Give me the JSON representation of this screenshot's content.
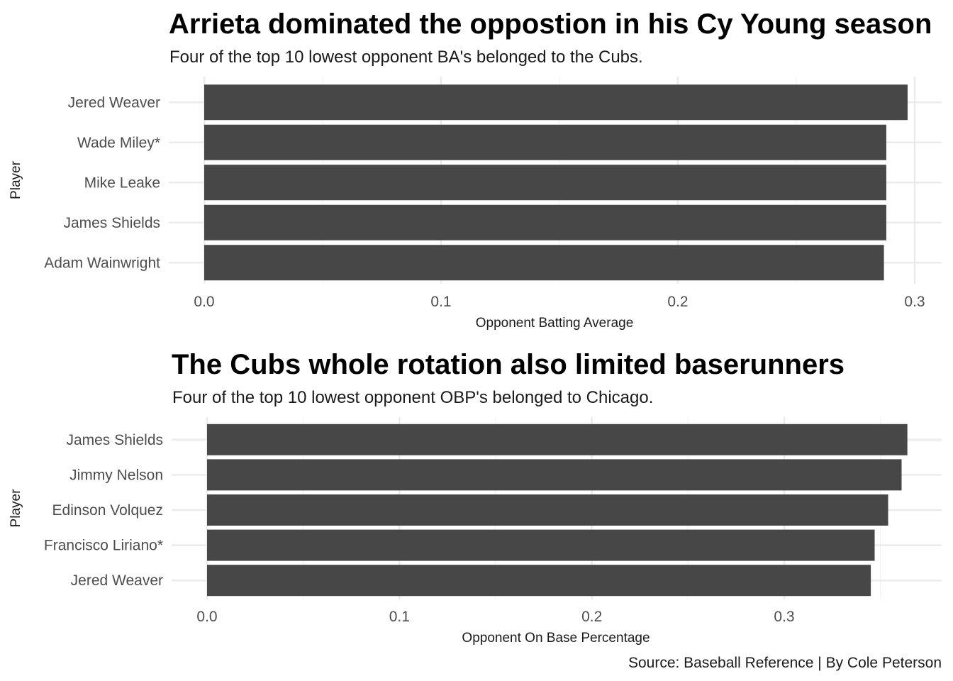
{
  "chart_data": [
    {
      "type": "bar",
      "orientation": "horizontal",
      "title": "Arrieta dominated the oppostion in his Cy Young season",
      "subtitle": "Four of the top 10 lowest opponent BA's belonged to the Cubs.",
      "xlabel": "Opponent Batting Average",
      "ylabel": "Player",
      "xlim": [
        0,
        0.3
      ],
      "xticks": [
        "0.0",
        "0.1",
        "0.2",
        "0.3"
      ],
      "categories": [
        "Jered Weaver",
        "Wade Miley*",
        "Mike Leake",
        "James Shields",
        "Adam Wainwright"
      ],
      "values": [
        0.297,
        0.288,
        0.288,
        0.288,
        0.287
      ],
      "grid": true,
      "bar_color": "#474747"
    },
    {
      "type": "bar",
      "orientation": "horizontal",
      "title": "The Cubs whole rotation also limited baserunners",
      "subtitle": "Four of the top 10 lowest opponent OBP's belonged to Chicago.",
      "xlabel": "Opponent On Base Percentage",
      "ylabel": "Player",
      "xlim": [
        0,
        0.3
      ],
      "xticks": [
        "0.0",
        "0.1",
        "0.2",
        "0.3"
      ],
      "categories": [
        "James Shields",
        "Jimmy Nelson",
        "Edinson Volquez",
        "Francisco Liriano*",
        "Jered Weaver"
      ],
      "values": [
        0.364,
        0.361,
        0.354,
        0.347,
        0.345
      ],
      "grid": true,
      "bar_color": "#474747"
    }
  ],
  "caption": "Source: Baseball Reference | By Cole Peterson"
}
